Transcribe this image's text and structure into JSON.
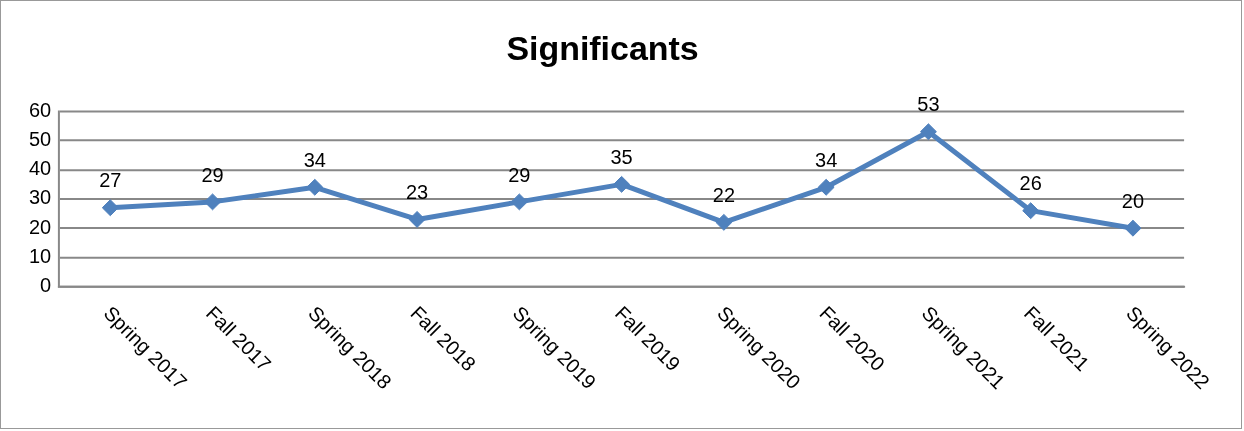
{
  "chart_data": {
    "type": "line",
    "title": "Significants",
    "categories": [
      "Spring 2017",
      "Fall 2017",
      "Spring 2018",
      "Fall 2018",
      "Spring 2019",
      "Fall 2019",
      "Spring 2020",
      "Fall 2020",
      "Spring 2021",
      "Fall 2021",
      "Spring 2022"
    ],
    "series": [
      {
        "color": "#4f81bd",
        "values": [
          27,
          29,
          34,
          23,
          29,
          35,
          22,
          34,
          53,
          26,
          20
        ]
      }
    ],
    "ylim": [
      0,
      60
    ],
    "yticks": [
      0,
      10,
      20,
      30,
      40,
      50,
      60
    ],
    "grid": "y",
    "legend": false,
    "marker": "diamond",
    "line_style": "solid",
    "data_labels": true
  }
}
